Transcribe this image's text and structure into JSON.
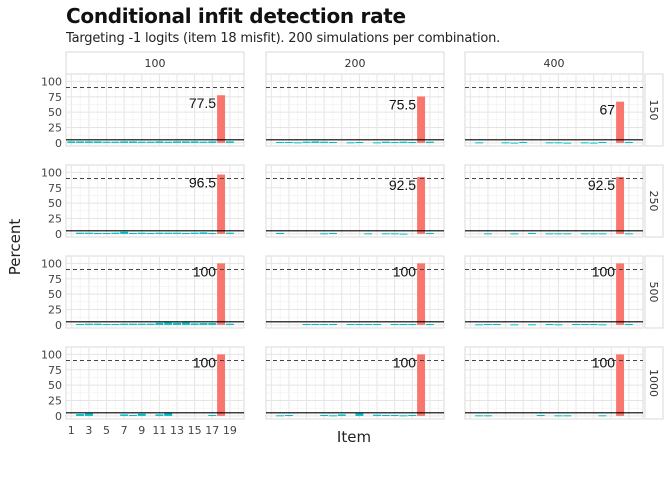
{
  "title": "Conditional infit detection rate",
  "subtitle": "Targeting -1 logits (item 18 misfit). 200 simulations per combination.",
  "chart_data": {
    "type": "bar",
    "xlabel": "Item",
    "ylabel": "Percent",
    "ylim": [
      -5,
      112
    ],
    "yticks": [
      0,
      25,
      50,
      75,
      100
    ],
    "xticks": [
      "1",
      "3",
      "5",
      "7",
      "9",
      "11",
      "13",
      "15",
      "17",
      "19"
    ],
    "items": [
      1,
      2,
      3,
      4,
      5,
      6,
      7,
      8,
      9,
      10,
      11,
      12,
      13,
      14,
      15,
      16,
      17,
      18,
      19,
      20
    ],
    "misfit_item": 18,
    "reference_lines": {
      "dashed": 90,
      "solid": 5
    },
    "columns": [
      "100",
      "200",
      "400"
    ],
    "rows": [
      "150",
      "250",
      "500",
      "1000"
    ],
    "colors": {
      "misfit": "#F8766D",
      "other": "#00BFC4",
      "strip_bg": "#ffffff",
      "grid": "#e5e5e5"
    },
    "panels": [
      {
        "row": "150",
        "col": "100",
        "label": "77.5",
        "values": [
          2.5,
          2.5,
          2.5,
          2.5,
          2,
          2,
          2.5,
          2.5,
          2,
          2,
          2.5,
          2,
          2.5,
          2.5,
          2.5,
          2,
          2.5,
          77.5,
          2.5,
          0
        ]
      },
      {
        "row": "150",
        "col": "200",
        "label": "75.5",
        "values": [
          0,
          1.5,
          1.5,
          1,
          2,
          2.5,
          2,
          1.5,
          0,
          1,
          1.5,
          0,
          1,
          2,
          1.5,
          2,
          1.5,
          75.5,
          2,
          0
        ]
      },
      {
        "row": "150",
        "col": "400",
        "label": "67",
        "values": [
          0,
          1,
          0,
          0,
          1,
          0.5,
          1.5,
          0,
          0,
          1,
          1,
          0.5,
          0,
          1,
          0.5,
          1.5,
          0,
          67,
          1.5,
          0
        ]
      },
      {
        "row": "250",
        "col": "100",
        "label": "96.5",
        "values": [
          0,
          2,
          2,
          1.5,
          1.5,
          2,
          3.5,
          1.5,
          2,
          1.5,
          2,
          2,
          2,
          1.5,
          2,
          2.5,
          1.5,
          96.5,
          2,
          0
        ]
      },
      {
        "row": "250",
        "col": "200",
        "label": "92.5",
        "values": [
          0,
          1.5,
          0,
          0,
          0,
          0,
          1,
          1.5,
          0,
          0,
          0,
          1,
          0,
          1,
          1,
          0.5,
          0,
          92.5,
          1.5,
          0
        ]
      },
      {
        "row": "250",
        "col": "400",
        "label": "92.5",
        "values": [
          0,
          0,
          1,
          0,
          0,
          1,
          0,
          1.5,
          0,
          1,
          1,
          1,
          0,
          1,
          1,
          1,
          0,
          92.5,
          1,
          0
        ]
      },
      {
        "row": "500",
        "col": "100",
        "label": "100",
        "values": [
          0,
          1.5,
          2,
          2,
          1.5,
          1.5,
          2,
          2,
          2,
          2,
          3.5,
          4,
          3.5,
          4,
          2.5,
          3,
          3,
          100,
          2,
          0
        ]
      },
      {
        "row": "500",
        "col": "200",
        "label": "100",
        "values": [
          0,
          0,
          0,
          0,
          1.5,
          1.5,
          1.5,
          1.5,
          0,
          1.5,
          1.5,
          1.5,
          1.5,
          0,
          1.5,
          1.5,
          1.5,
          100,
          1.5,
          0
        ]
      },
      {
        "row": "500",
        "col": "400",
        "label": "100",
        "values": [
          0,
          1,
          1.5,
          1.5,
          0,
          1,
          0,
          1,
          0,
          1.5,
          1,
          0,
          1.5,
          1.5,
          1.5,
          1,
          0,
          100,
          1.5,
          0
        ]
      },
      {
        "row": "1000",
        "col": "100",
        "label": "100",
        "values": [
          0,
          3,
          4,
          0,
          0,
          0,
          2.5,
          1.5,
          3.5,
          0,
          2.5,
          4.5,
          0,
          0,
          0,
          0,
          1.5,
          100,
          0,
          0
        ]
      },
      {
        "row": "1000",
        "col": "200",
        "label": "100",
        "values": [
          0,
          1,
          1.5,
          0,
          0,
          0,
          1.5,
          1,
          2.5,
          0,
          4,
          0,
          2,
          1.5,
          1.5,
          1,
          1.5,
          100,
          0,
          0
        ]
      },
      {
        "row": "1000",
        "col": "400",
        "label": "100",
        "values": [
          0,
          1,
          1,
          0,
          0,
          0,
          0,
          0,
          1.5,
          0,
          1,
          1,
          0,
          0,
          0,
          1,
          0,
          100,
          0,
          0
        ]
      }
    ]
  }
}
